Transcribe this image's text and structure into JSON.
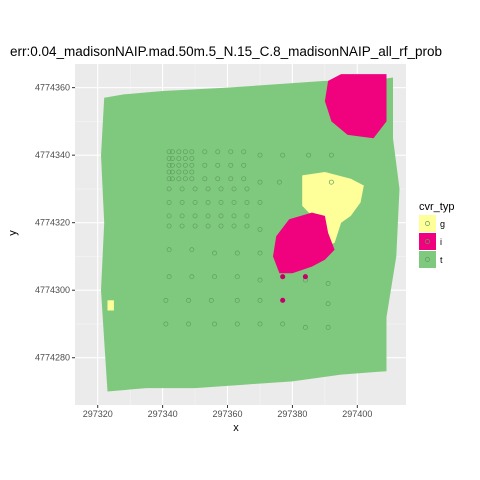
{
  "colors": {
    "panel": "#ebebeb",
    "grid_major": "#ffffff",
    "grid_minor": "#f5f5f5",
    "g": "#ffff99",
    "i": "#f0027f",
    "t": "#7fc97f",
    "point_t": "#5e9e5e",
    "point_i": "#c40068"
  },
  "chart_data": {
    "type": "scatter",
    "title": "err:0.04_madisonNAIP.mad.50m.5_N.15_C.8_madisonNAIP_all_rf_prob",
    "xlabel": "x",
    "ylabel": "y",
    "xlim": [
      297313,
      297415
    ],
    "ylim": [
      4774266,
      4774367
    ],
    "xticks": [
      297320,
      297340,
      297360,
      297380,
      297400
    ],
    "xtick_labels": [
      "297320",
      "297340",
      "297360",
      "297380",
      "297400"
    ],
    "yticks": [
      4774280,
      4774300,
      4774320,
      4774340,
      4774360
    ],
    "ytick_labels": [
      "4774280",
      "4774300",
      "4774320",
      "4774340",
      "4774360"
    ],
    "grid": true,
    "legend": {
      "title": "cvr_typ",
      "position": "right",
      "entries": [
        {
          "key": "g",
          "label": "g"
        },
        {
          "key": "i",
          "label": "i"
        },
        {
          "key": "t",
          "label": "t"
        }
      ]
    },
    "raster_regions": [
      {
        "class": "t",
        "outline": [
          [
            297322,
            4774357
          ],
          [
            297328,
            4774358
          ],
          [
            297340,
            4774359
          ],
          [
            297360,
            4774360
          ],
          [
            297375,
            4774361
          ],
          [
            297390,
            4774362
          ],
          [
            297404,
            4774362
          ],
          [
            297411,
            4774363
          ],
          [
            297411,
            4774345
          ],
          [
            297413,
            4774330
          ],
          [
            297412,
            4774310
          ],
          [
            297409,
            4774292
          ],
          [
            297409,
            4774276
          ],
          [
            297395,
            4774275
          ],
          [
            297380,
            4774273
          ],
          [
            297365,
            4774272
          ],
          [
            297350,
            4774271
          ],
          [
            297335,
            4774271
          ],
          [
            297323,
            4774270
          ],
          [
            297322,
            4774285
          ],
          [
            297321,
            4774300
          ],
          [
            297322,
            4774320
          ],
          [
            297321,
            4774340
          ]
        ]
      },
      {
        "class": "i",
        "outline": [
          [
            297391,
            4774362
          ],
          [
            297395,
            4774364
          ],
          [
            297409,
            4774364
          ],
          [
            297409,
            4774350
          ],
          [
            297405,
            4774345
          ],
          [
            297397,
            4774346
          ],
          [
            297392,
            4774350
          ],
          [
            297390,
            4774356
          ]
        ]
      },
      {
        "class": "g",
        "outline": [
          [
            297383,
            4774334
          ],
          [
            297390,
            4774335
          ],
          [
            297398,
            4774333
          ],
          [
            297402,
            4774331
          ],
          [
            297401,
            4774326
          ],
          [
            297398,
            4774322
          ],
          [
            297395,
            4774320
          ],
          [
            297393,
            4774314
          ],
          [
            297390,
            4774313
          ],
          [
            297390,
            4774320
          ],
          [
            297386,
            4774322
          ],
          [
            297383,
            4774325
          ]
        ]
      },
      {
        "class": "i",
        "outline": [
          [
            297386,
            4774323
          ],
          [
            297390,
            4774322
          ],
          [
            297391,
            4774317
          ],
          [
            297393,
            4774312
          ],
          [
            297390,
            4774309
          ],
          [
            297386,
            4774307
          ],
          [
            297380,
            4774305
          ],
          [
            297376,
            4774305
          ],
          [
            297374,
            4774310
          ],
          [
            297375,
            4774316
          ],
          [
            297379,
            4774321
          ]
        ]
      },
      {
        "class": "g",
        "outline": [
          [
            297323,
            4774297
          ],
          [
            297325,
            4774297
          ],
          [
            297325,
            4774294
          ],
          [
            297323,
            4774294
          ]
        ]
      }
    ],
    "points_t": [
      [
        297342,
        4774341
      ],
      [
        297343,
        4774341
      ],
      [
        297345,
        4774341
      ],
      [
        297347,
        4774341
      ],
      [
        297349,
        4774341
      ],
      [
        297342,
        4774339
      ],
      [
        297343,
        4774339
      ],
      [
        297345,
        4774339
      ],
      [
        297347,
        4774339
      ],
      [
        297349,
        4774339
      ],
      [
        297342,
        4774337
      ],
      [
        297343,
        4774337
      ],
      [
        297345,
        4774337
      ],
      [
        297347,
        4774337
      ],
      [
        297349,
        4774337
      ],
      [
        297342,
        4774335
      ],
      [
        297343,
        4774335
      ],
      [
        297345,
        4774335
      ],
      [
        297347,
        4774335
      ],
      [
        297349,
        4774335
      ],
      [
        297342,
        4774333
      ],
      [
        297343,
        4774333
      ],
      [
        297345,
        4774333
      ],
      [
        297347,
        4774333
      ],
      [
        297349,
        4774333
      ],
      [
        297353,
        4774341
      ],
      [
        297357,
        4774341
      ],
      [
        297361,
        4774341
      ],
      [
        297365,
        4774341
      ],
      [
        297353,
        4774337
      ],
      [
        297357,
        4774337
      ],
      [
        297361,
        4774337
      ],
      [
        297365,
        4774337
      ],
      [
        297353,
        4774333
      ],
      [
        297357,
        4774333
      ],
      [
        297361,
        4774333
      ],
      [
        297365,
        4774333
      ],
      [
        297370,
        4774340
      ],
      [
        297377,
        4774340
      ],
      [
        297385,
        4774340
      ],
      [
        297392,
        4774340
      ],
      [
        297370,
        4774332
      ],
      [
        297376,
        4774332
      ],
      [
        297392,
        4774332
      ],
      [
        297342,
        4774330
      ],
      [
        297346,
        4774330
      ],
      [
        297350,
        4774330
      ],
      [
        297354,
        4774330
      ],
      [
        297358,
        4774330
      ],
      [
        297362,
        4774330
      ],
      [
        297366,
        4774330
      ],
      [
        297342,
        4774326
      ],
      [
        297346,
        4774326
      ],
      [
        297350,
        4774326
      ],
      [
        297354,
        4774326
      ],
      [
        297358,
        4774326
      ],
      [
        297362,
        4774326
      ],
      [
        297366,
        4774326
      ],
      [
        297342,
        4774322
      ],
      [
        297346,
        4774322
      ],
      [
        297350,
        4774322
      ],
      [
        297354,
        4774322
      ],
      [
        297358,
        4774322
      ],
      [
        297362,
        4774322
      ],
      [
        297366,
        4774322
      ],
      [
        297342,
        4774319
      ],
      [
        297346,
        4774319
      ],
      [
        297350,
        4774319
      ],
      [
        297354,
        4774319
      ],
      [
        297358,
        4774319
      ],
      [
        297362,
        4774319
      ],
      [
        297366,
        4774319
      ],
      [
        297370,
        4774326
      ],
      [
        297370,
        4774318
      ],
      [
        297342,
        4774312
      ],
      [
        297349,
        4774312
      ],
      [
        297356,
        4774311
      ],
      [
        297363,
        4774311
      ],
      [
        297370,
        4774311
      ],
      [
        297342,
        4774304
      ],
      [
        297349,
        4774304
      ],
      [
        297356,
        4774304
      ],
      [
        297363,
        4774304
      ],
      [
        297370,
        4774303
      ],
      [
        297384,
        4774303
      ],
      [
        297391,
        4774302
      ],
      [
        297341,
        4774297
      ],
      [
        297348,
        4774297
      ],
      [
        297355,
        4774297
      ],
      [
        297363,
        4774297
      ],
      [
        297370,
        4774297
      ],
      [
        297391,
        4774296
      ],
      [
        297341,
        4774290
      ],
      [
        297348,
        4774290
      ],
      [
        297356,
        4774290
      ],
      [
        297363,
        4774290
      ],
      [
        297370,
        4774290
      ],
      [
        297377,
        4774290
      ],
      [
        297384,
        4774289
      ],
      [
        297391,
        4774289
      ]
    ],
    "points_i": [
      [
        297377,
        4774304
      ],
      [
        297384,
        4774304
      ],
      [
        297377,
        4774297
      ]
    ]
  }
}
